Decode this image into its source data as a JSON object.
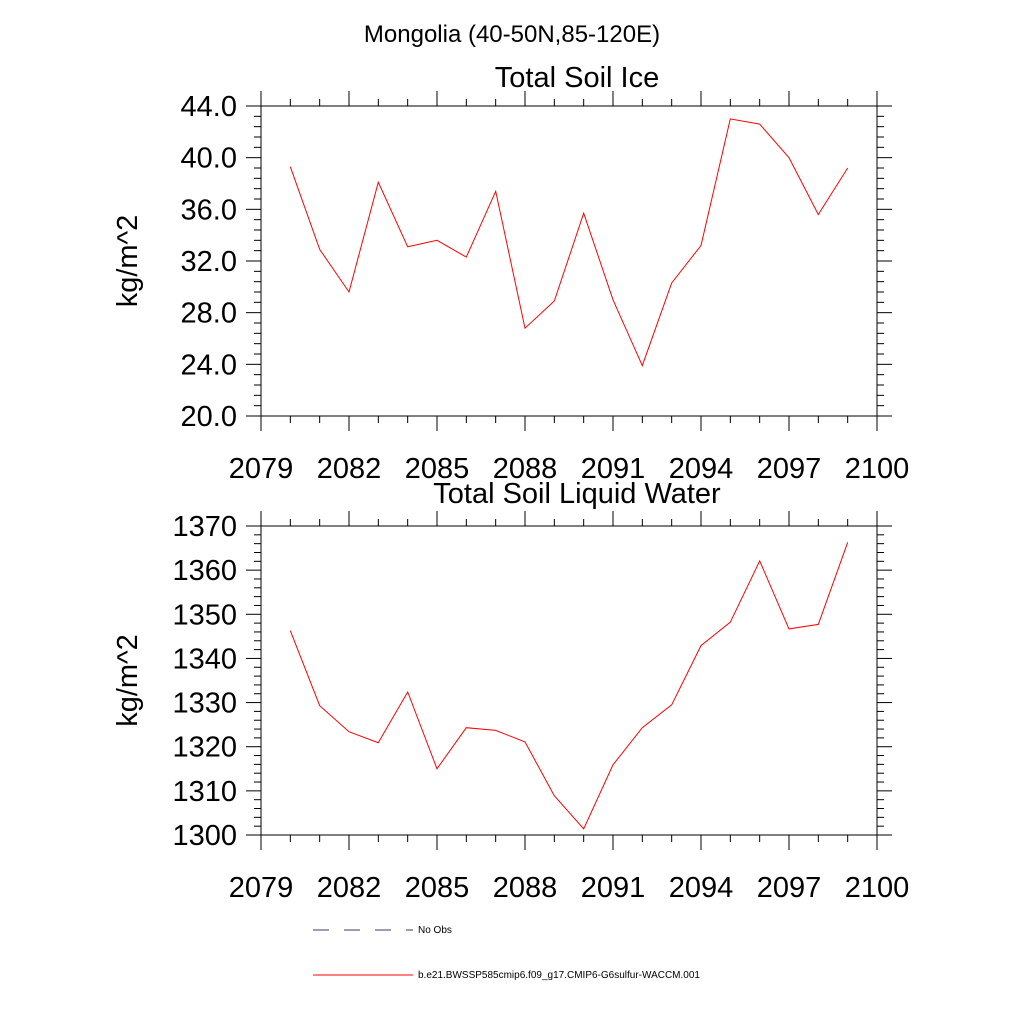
{
  "figure": {
    "suptitle": "Mongolia (40-50N,85-120E)",
    "legend": [
      {
        "label": "No Obs",
        "color": "#3b3b6b",
        "style": "dashed"
      },
      {
        "label": "b.e21.BWSSP585cmip6.f09_g17.CMIP6-G6sulfur-WACCM.001",
        "color": "#ff0000",
        "style": "solid"
      }
    ]
  },
  "chart_data": [
    {
      "type": "line",
      "title": "Total Soil Ice",
      "xlabel": "",
      "ylabel": "kg/m^2",
      "xlim": [
        2079,
        2100
      ],
      "ylim": [
        20,
        44
      ],
      "xticks": [
        2079,
        2082,
        2085,
        2088,
        2091,
        2094,
        2097,
        2100
      ],
      "xtick_labels": [
        "2079",
        "2082",
        "2085",
        "2088",
        "2091",
        "2094",
        "2097",
        "2100"
      ],
      "yticks": [
        20,
        24,
        28,
        32,
        36,
        40,
        44
      ],
      "ytick_labels": [
        "20.0",
        "24.0",
        "28.0",
        "32.0",
        "36.0",
        "40.0",
        "44.0"
      ],
      "grid": false,
      "series": [
        {
          "color": "#ff0000",
          "x": [
            2080,
            2081,
            2082,
            2083,
            2084,
            2085,
            2086,
            2087,
            2088,
            2089,
            2090,
            2091,
            2092,
            2093,
            2094,
            2095,
            2096,
            2097,
            2098,
            2099
          ],
          "values": [
            39.3,
            32.9,
            29.6,
            38.1,
            33.1,
            33.6,
            32.3,
            37.4,
            26.8,
            28.9,
            35.7,
            29.0,
            23.9,
            30.3,
            33.2,
            43.0,
            42.6,
            40.0,
            35.6,
            39.2
          ]
        }
      ]
    },
    {
      "type": "line",
      "title": "Total Soil Liquid Water",
      "xlabel": "",
      "ylabel": "kg/m^2",
      "xlim": [
        2079,
        2100
      ],
      "ylim": [
        1300,
        1370
      ],
      "xticks": [
        2079,
        2082,
        2085,
        2088,
        2091,
        2094,
        2097,
        2100
      ],
      "xtick_labels": [
        "2079",
        "2082",
        "2085",
        "2088",
        "2091",
        "2094",
        "2097",
        "2100"
      ],
      "yticks": [
        1300,
        1310,
        1320,
        1330,
        1340,
        1350,
        1360,
        1370
      ],
      "ytick_labels": [
        "1300",
        "1310",
        "1320",
        "1330",
        "1340",
        "1350",
        "1360",
        "1370"
      ],
      "grid": false,
      "series": [
        {
          "color": "#ff0000",
          "x": [
            2080,
            2081,
            2082,
            2083,
            2084,
            2085,
            2086,
            2087,
            2088,
            2089,
            2090,
            2091,
            2092,
            2093,
            2094,
            2095,
            2096,
            2097,
            2098,
            2099
          ],
          "values": [
            1346.3,
            1329.3,
            1323.4,
            1320.9,
            1332.4,
            1315.0,
            1324.3,
            1323.7,
            1321.1,
            1308.9,
            1301.4,
            1315.9,
            1324.3,
            1329.5,
            1342.9,
            1348.2,
            1362.1,
            1346.7,
            1347.7,
            1366.3
          ]
        }
      ]
    }
  ]
}
